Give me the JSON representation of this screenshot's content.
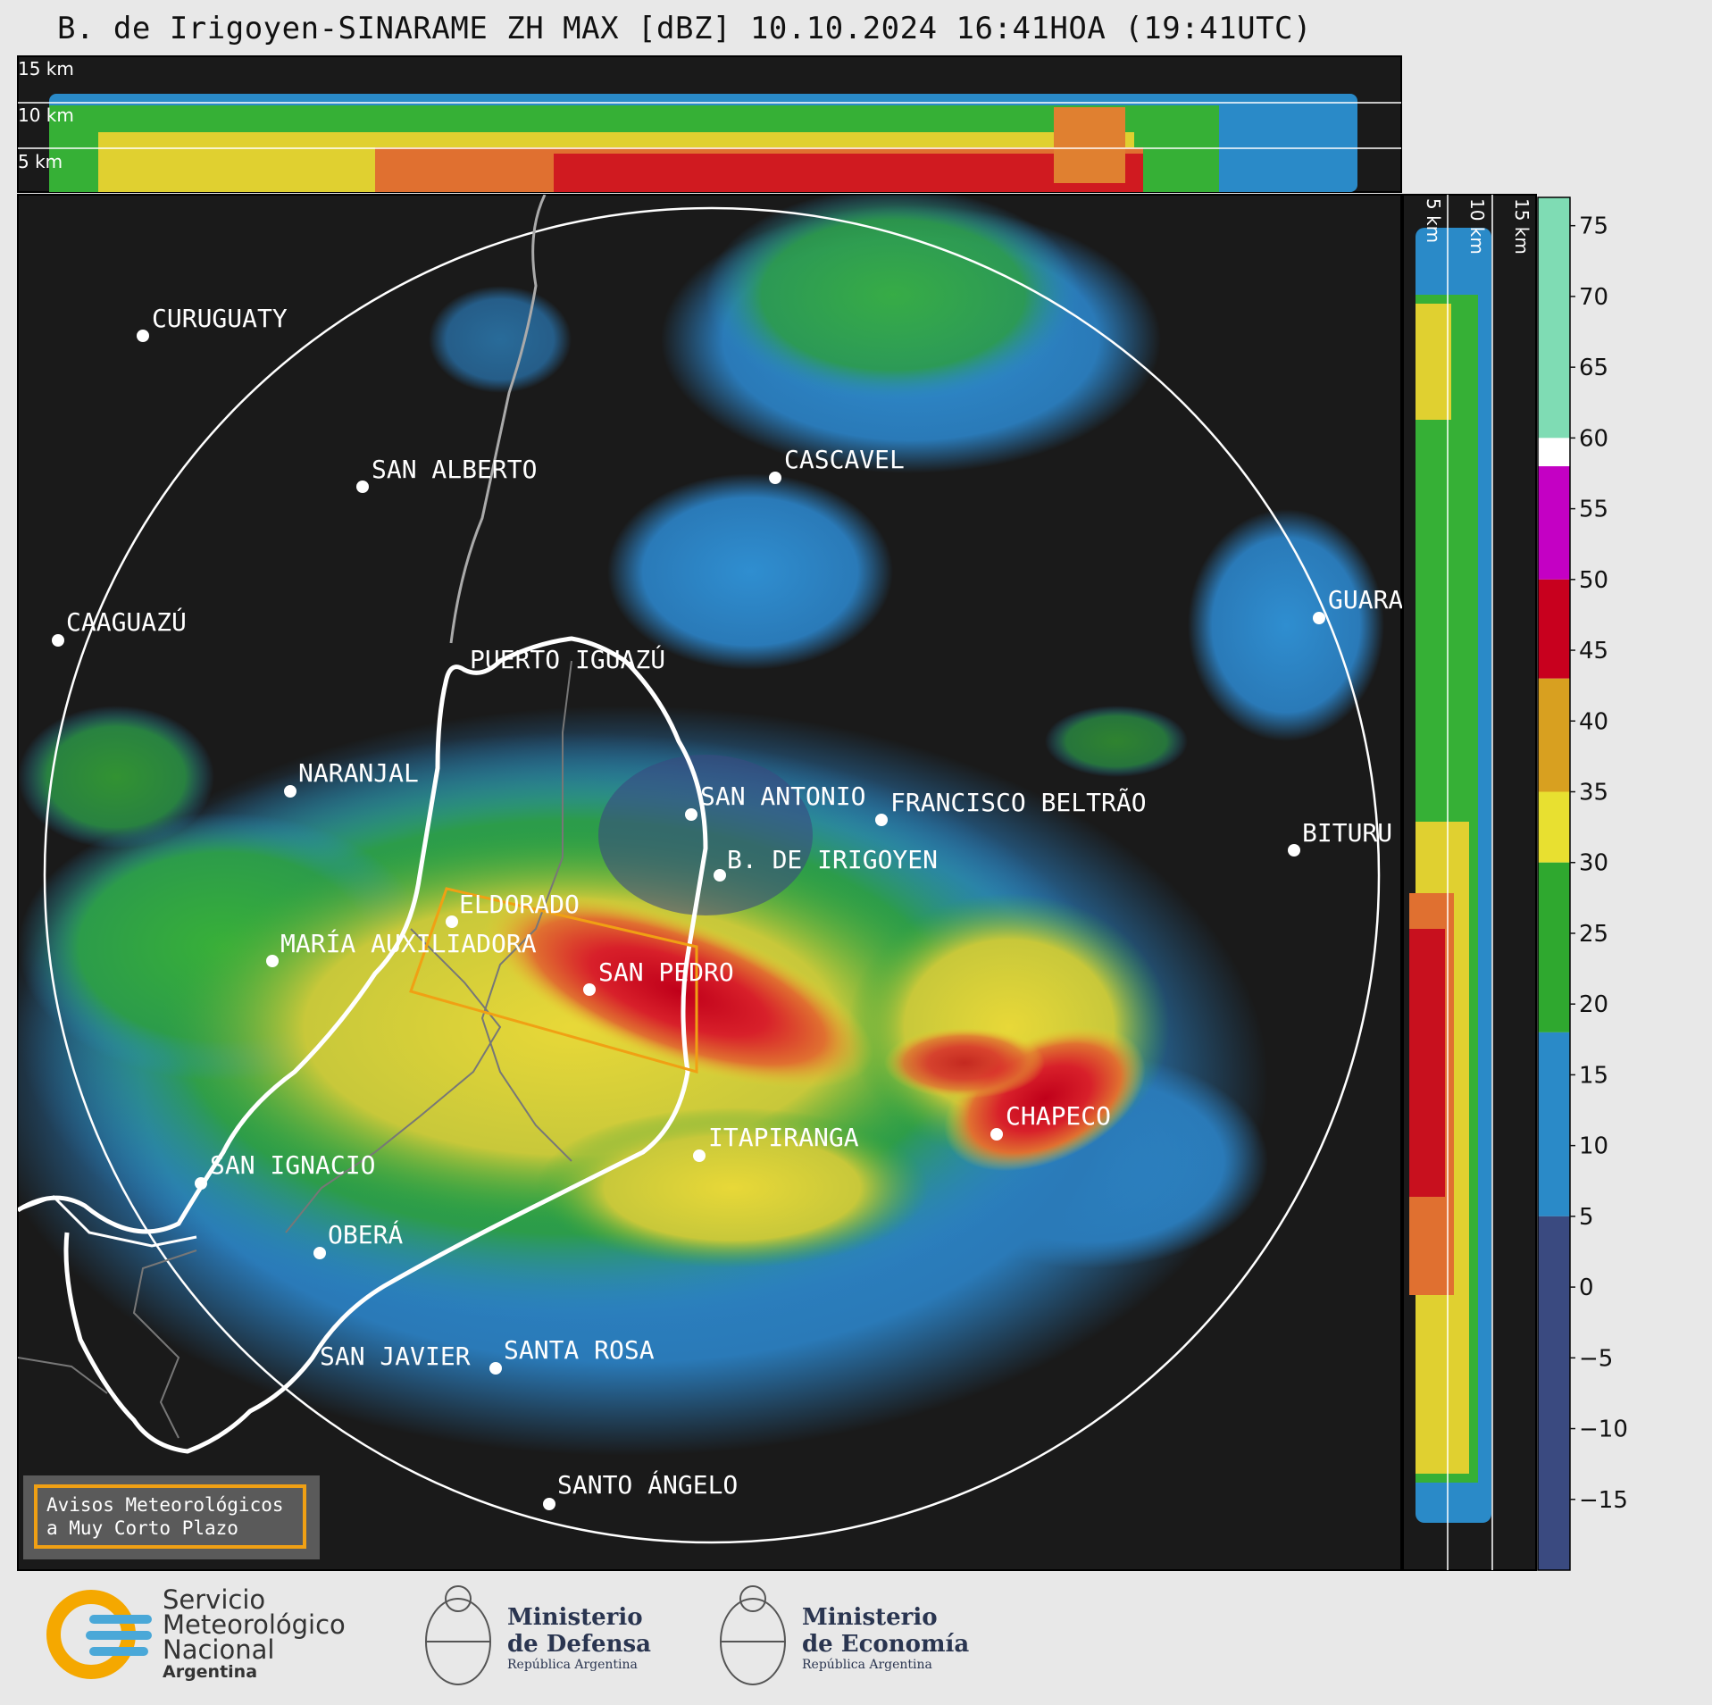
{
  "title": "B. de Irigoyen-SINARAME ZH MAX [dBZ] 10.10.2024 16:41HOA (19:41UTC)",
  "height_labels_top": [
    "15 km",
    "10 km",
    "5 km"
  ],
  "height_labels_side": [
    "5 km",
    "10 km",
    "15 km"
  ],
  "cities": [
    {
      "name": "CURUGUATY"
    },
    {
      "name": "SAN ALBERTO"
    },
    {
      "name": "CASCAVEL"
    },
    {
      "name": "CAAGUAZÚ"
    },
    {
      "name": "GUARA"
    },
    {
      "name": "PUERTO IGUAZÚ"
    },
    {
      "name": "NARANJAL"
    },
    {
      "name": "SAN ANTONIO"
    },
    {
      "name": "FRANCISCO BELTRÃO"
    },
    {
      "name": "B. DE IRIGOYEN"
    },
    {
      "name": "BITURU"
    },
    {
      "name": "ELDORADO"
    },
    {
      "name": "MARÍA AUXILIADORA"
    },
    {
      "name": "SAN PEDRO"
    },
    {
      "name": "CHAPECO"
    },
    {
      "name": "ITAPIRANGA"
    },
    {
      "name": "SAN IGNACIO"
    },
    {
      "name": "OBERÁ"
    },
    {
      "name": "SAN JAVIER"
    },
    {
      "name": "SANTA ROSA"
    },
    {
      "name": "SANTO ÁNGELO"
    }
  ],
  "colorbar": {
    "ticks": [
      "75",
      "70",
      "65",
      "60",
      "55",
      "50",
      "45",
      "40",
      "35",
      "30",
      "25",
      "20",
      "15",
      "10",
      "5",
      "0",
      "−5",
      "−10",
      "−15"
    ],
    "segments": [
      {
        "from": 60,
        "to": 77,
        "color": "#7fdcb4"
      },
      {
        "from": 58,
        "to": 60,
        "color": "#ffffff"
      },
      {
        "from": 50,
        "to": 58,
        "color": "#c400c4"
      },
      {
        "from": 43,
        "to": 50,
        "color": "#c8001e"
      },
      {
        "from": 35,
        "to": 43,
        "color": "#d8a020"
      },
      {
        "from": 30,
        "to": 35,
        "color": "#e8e030"
      },
      {
        "from": 18,
        "to": 30,
        "color": "#2fa82f"
      },
      {
        "from": 5,
        "to": 18,
        "color": "#2a8ac8"
      },
      {
        "from": -20,
        "to": 5,
        "color": "#3a4a80"
      }
    ]
  },
  "warning_box": {
    "line1": "Avisos Meteorológicos",
    "line2": "a Muy Corto Plazo"
  },
  "logos": {
    "smn": {
      "line1": "Servicio",
      "line2": "Meteorológico",
      "line3": "Nacional",
      "line4": "Argentina"
    },
    "defensa": {
      "line1": "Ministerio",
      "line2": "de Defensa",
      "line3": "República Argentina"
    },
    "economia": {
      "line1": "Ministerio",
      "line2": "de Economía",
      "line3": "República Argentina"
    }
  },
  "colors": {
    "background": "#1a1a1a",
    "border_white": "#ffffff",
    "polygon": "#f0a014"
  }
}
